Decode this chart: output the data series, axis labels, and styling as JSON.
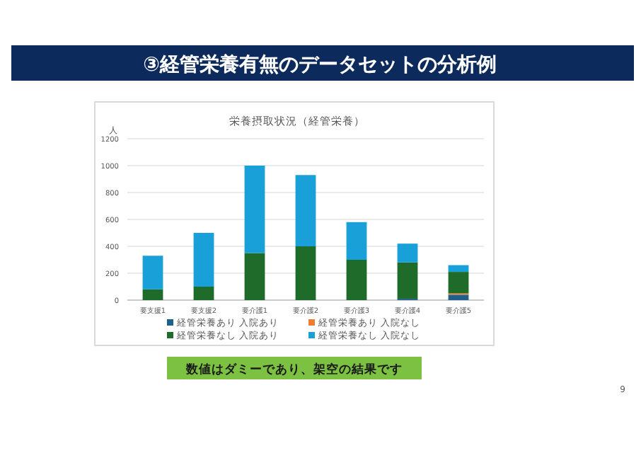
{
  "chart_data": {
    "type": "bar",
    "title": "③経管栄養有無のデータセットの分析例",
    "subtitle": "栄養摂取状況（経管栄養）",
    "ylabel": "人",
    "categories": [
      "要支援1",
      "要支援2",
      "要介護1",
      "要介護2",
      "要介護3",
      "要介護4",
      "要介護5"
    ],
    "series": [
      {
        "name": "経管栄養あり 入院あり",
        "color": "#1f5f8b",
        "values": [
          0,
          0,
          0,
          0,
          0,
          10,
          40
        ]
      },
      {
        "name": "経管栄養あり 入院なし",
        "color": "#ed7d31",
        "values": [
          0,
          0,
          0,
          0,
          0,
          0,
          10
        ]
      },
      {
        "name": "経管栄養なし 入院あり",
        "color": "#1e6b2a",
        "values": [
          80,
          100,
          350,
          400,
          300,
          270,
          160
        ]
      },
      {
        "name": "経管栄養なし 入院なし",
        "color": "#1aa0d8",
        "values": [
          250,
          400,
          650,
          530,
          280,
          140,
          50
        ]
      }
    ],
    "stacked": true,
    "ylim": [
      0,
      1200
    ],
    "yticks": [
      0,
      200,
      400,
      600,
      800,
      1000,
      1200
    ],
    "grid": "y",
    "legend": "bottom",
    "annotations": [
      "数値はダミーであり、架空の結果です",
      "9"
    ]
  }
}
